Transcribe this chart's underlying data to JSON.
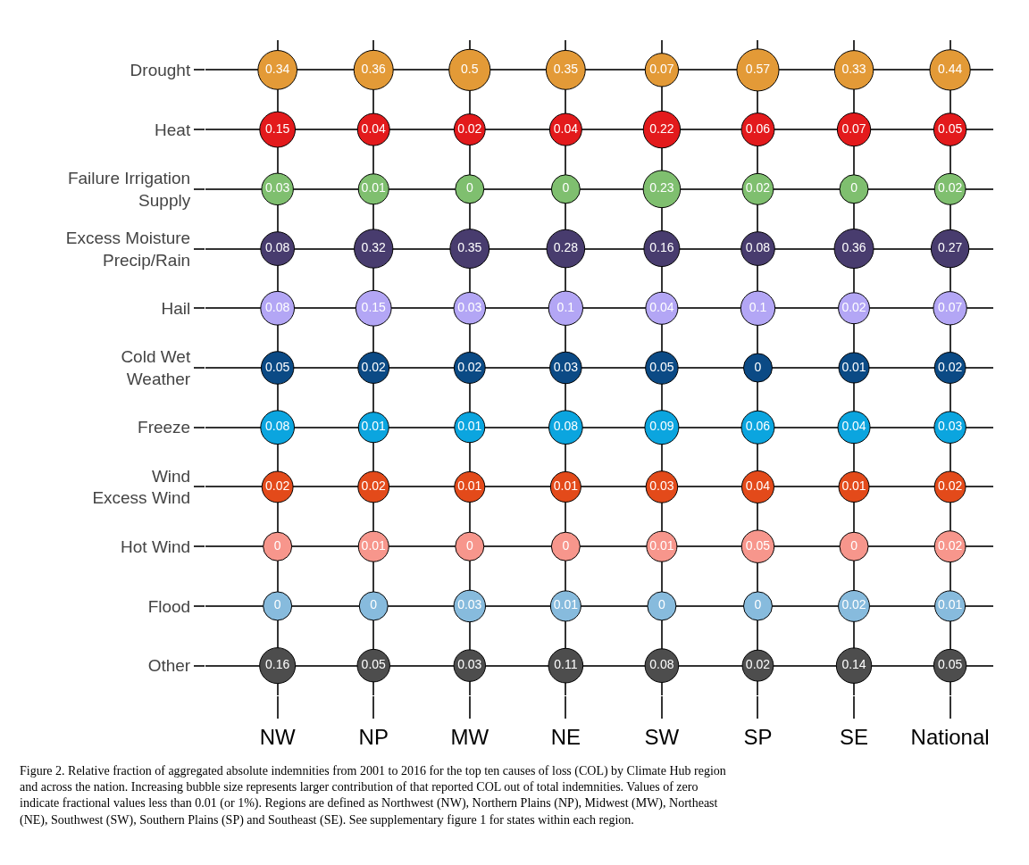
{
  "chart_data": {
    "type": "heatmap",
    "categories": [
      "NW",
      "NP",
      "MW",
      "NE",
      "SW",
      "SP",
      "SE",
      "National"
    ],
    "y_categories": [
      "Drought",
      "Heat",
      "Failure Irrigation\nSupply",
      "Excess Moisture\nPrecip/Rain",
      "Hail",
      "Cold Wet\nWeather",
      "Freeze",
      "Wind\nExcess Wind",
      "Hot Wind",
      "Flood",
      "Other"
    ],
    "colors": [
      "#e39a37",
      "#e31a1c",
      "#7fbf6f",
      "#483c6e",
      "#b3a6f5",
      "#0b4a85",
      "#0ba5df",
      "#e34a1a",
      "#f7968c",
      "#87bbdd",
      "#4d4d4d"
    ],
    "cells": [
      [
        0.34,
        0.36,
        0.5,
        0.35,
        0.07,
        0.57,
        0.33,
        0.44
      ],
      [
        0.15,
        0.04,
        0.02,
        0.04,
        0.22,
        0.06,
        0.07,
        0.05
      ],
      [
        0.03,
        0.01,
        0,
        0,
        0.23,
        0.02,
        0,
        0.02
      ],
      [
        0.08,
        0.32,
        0.35,
        0.28,
        0.16,
        0.08,
        0.36,
        0.27
      ],
      [
        0.08,
        0.15,
        0.03,
        0.1,
        0.04,
        0.1,
        0.02,
        0.07
      ],
      [
        0.05,
        0.02,
        0.02,
        0.03,
        0.05,
        0,
        0.01,
        0.02
      ],
      [
        0.08,
        0.01,
        0.01,
        0.08,
        0.09,
        0.06,
        0.04,
        0.03
      ],
      [
        0.02,
        0.02,
        0.01,
        0.01,
        0.03,
        0.04,
        0.01,
        0.02
      ],
      [
        0,
        0.01,
        0,
        0,
        0.01,
        0.05,
        0,
        0.02
      ],
      [
        0,
        0,
        0.03,
        0.01,
        0,
        0,
        0.02,
        0.01
      ],
      [
        0.16,
        0.05,
        0.03,
        0.11,
        0.08,
        0.02,
        0.14,
        0.05
      ]
    ],
    "data_labels": true,
    "grid": true,
    "annotations": [
      "Figure 2. Relative fraction of aggregated absolute indemnities from 2001 to 2016 for the top ten causes of loss (COL) by Climate Hub region and across the nation. Increasing bubble size represents larger contribution of that reported COL out of total indemnities. Values of zero indicate fractional values less than 0.01 (or 1%). Regions are defined as Northwest (NW), Northern Plains (NP), Midwest (MW), Northeast (NE), Southwest (SW), Southern Plains (SP) and Southeast (SE). See supplementary figure 1 for states within each region."
    ]
  }
}
